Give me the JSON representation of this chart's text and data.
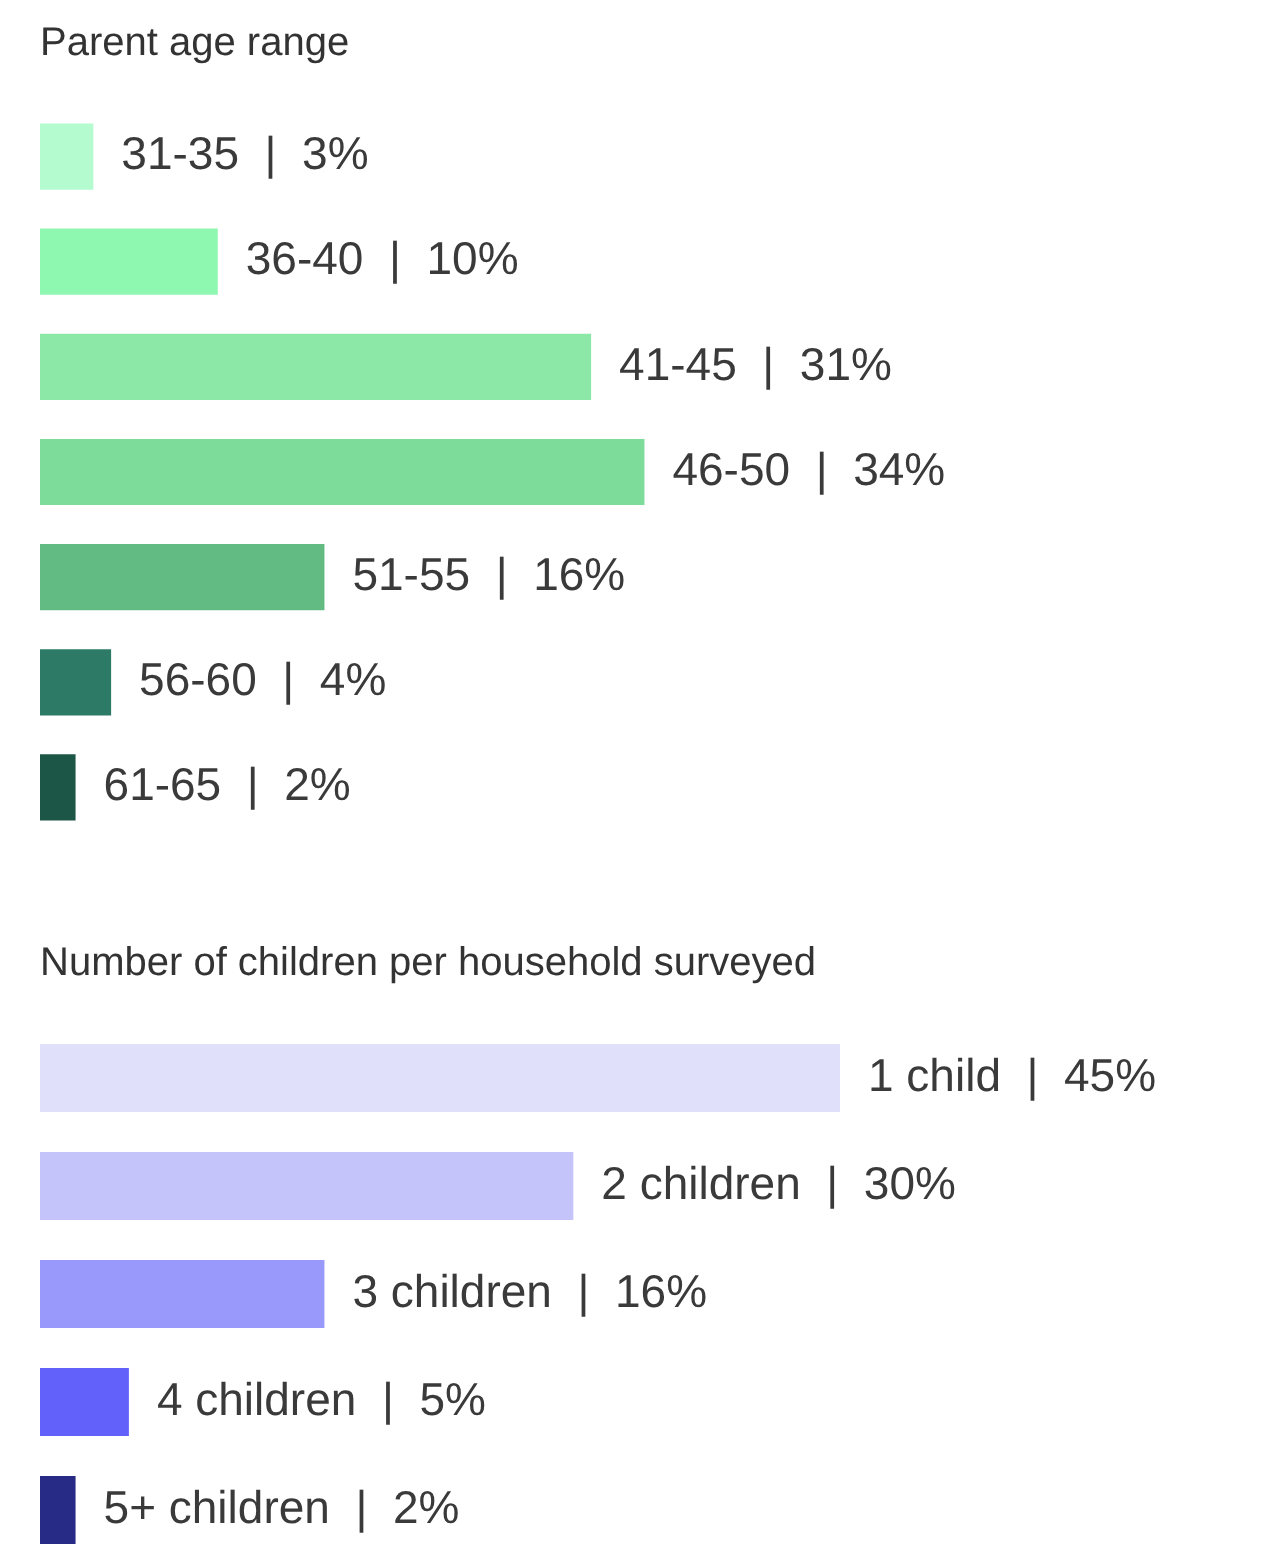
{
  "chart_data": [
    {
      "type": "bar",
      "orientation": "horizontal",
      "title": "Parent age range",
      "tick_labels": false,
      "categories": [
        null,
        null,
        null,
        null,
        null,
        null,
        null
      ],
      "values": [
        3,
        10,
        31,
        34,
        16,
        4,
        2
      ],
      "value_labels": [
        "31-35 | 3%",
        "36-40 | 10%",
        "41-45 | 31%",
        "46-50 | 34%",
        "51-55 | 16%",
        "56-60 | 4%",
        "61-65 | 2%"
      ],
      "colors": [
        "#b5fbd0",
        "#8ef8b0",
        "#8ce8a6",
        "#7ddc99",
        "#63bb84",
        "#2d7b67",
        "#1b5646"
      ]
    },
    {
      "type": "bar",
      "orientation": "horizontal",
      "title": "Number of children per household surveyed",
      "tick_labels": false,
      "categories": [
        null,
        null,
        null,
        null,
        null
      ],
      "values": [
        45,
        30,
        16,
        5,
        2
      ],
      "value_labels": [
        "1 child | 45%",
        "2 children | 30%",
        "3 children | 16%",
        "4 children | 5%",
        "5+ children | 2%"
      ],
      "colors": [
        "#e0e0fb",
        "#c4c4fb",
        "#9999fb",
        "#6262fb",
        "#272b86"
      ]
    }
  ]
}
